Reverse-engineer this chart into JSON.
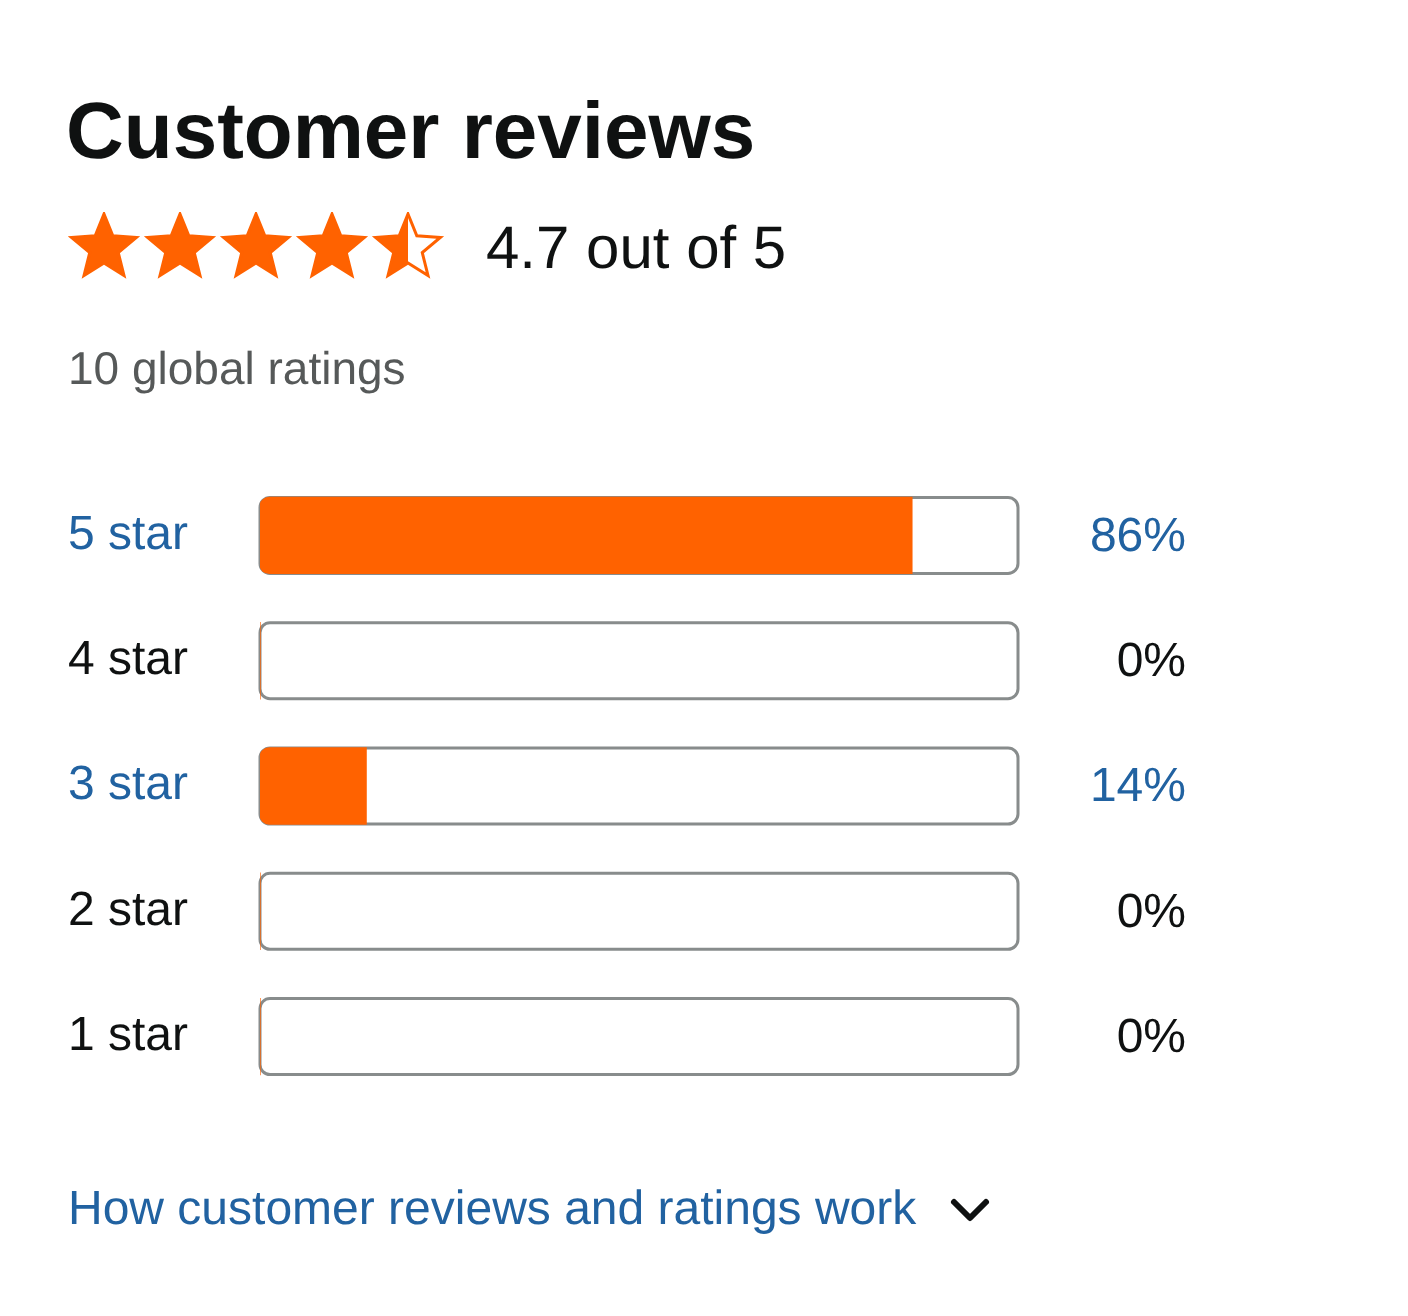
{
  "chart_data": {
    "type": "bar",
    "orientation": "horizontal",
    "title": "Customer reviews",
    "subtitle": "4.7 out of 5",
    "annotations": [
      "10 global ratings",
      "How customer reviews and ratings work"
    ],
    "categories": [
      "5 star",
      "4 star",
      "3 star",
      "2 star",
      "1 star"
    ],
    "values": [
      86,
      0,
      14,
      0,
      0
    ],
    "value_labels": [
      "86%",
      "0%",
      "14%",
      "0%",
      "0%"
    ],
    "color": "#ff6200",
    "xlim": [
      0,
      100
    ],
    "tick_labels": "y",
    "grid": false,
    "legend": false
  }
}
